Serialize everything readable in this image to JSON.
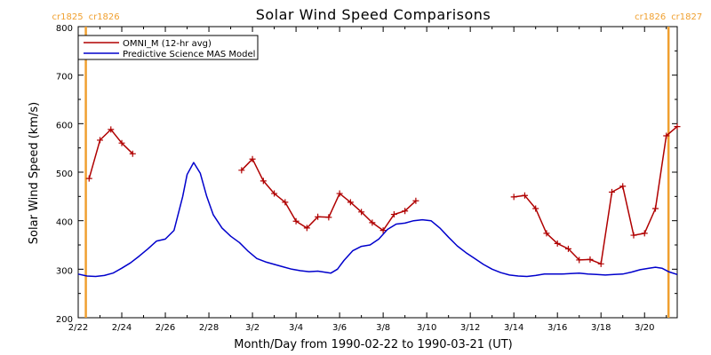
{
  "chart_data": {
    "type": "line",
    "title": "Solar Wind Speed Comparisons",
    "xlabel": "Month/Day from 1990-02-22 to 1990-03-21 (UT)",
    "ylabel": "Solar Wind Speed (km/s)",
    "ylim": [
      200,
      800
    ],
    "xlim_days": [
      0,
      27.5
    ],
    "y_ticks": [
      200,
      300,
      400,
      500,
      600,
      700,
      800
    ],
    "x_ticks": [
      {
        "day": 0,
        "label": "2/22"
      },
      {
        "day": 2,
        "label": "2/24"
      },
      {
        "day": 4,
        "label": "2/26"
      },
      {
        "day": 6,
        "label": "2/28"
      },
      {
        "day": 8,
        "label": "3/2"
      },
      {
        "day": 10,
        "label": "3/4"
      },
      {
        "day": 12,
        "label": "3/6"
      },
      {
        "day": 14,
        "label": "3/8"
      },
      {
        "day": 16,
        "label": "3/10"
      },
      {
        "day": 18,
        "label": "3/12"
      },
      {
        "day": 20,
        "label": "3/14"
      },
      {
        "day": 22,
        "label": "3/16"
      },
      {
        "day": 24,
        "label": "3/18"
      },
      {
        "day": 26,
        "label": "3/20"
      }
    ],
    "carrington_markers": [
      {
        "day": 0.35,
        "left_label": "cr1825",
        "right_label": "cr1826"
      },
      {
        "day": 27.1,
        "left_label": "cr1826",
        "right_label": "cr1827"
      }
    ],
    "legend": {
      "placement": "top-left"
    },
    "series": [
      {
        "name": "OMNI_M (12-hr avg)",
        "color": "#b00000",
        "markers": true,
        "segments": [
          [
            [
              0.5,
              487
            ],
            [
              1.0,
              566
            ],
            [
              1.5,
              588
            ],
            [
              2.0,
              560
            ],
            [
              2.5,
              538
            ]
          ],
          [
            [
              7.5,
              504
            ],
            [
              8.0,
              527
            ],
            [
              8.5,
              482
            ],
            [
              9.0,
              456
            ],
            [
              9.5,
              438
            ],
            [
              10.0,
              399
            ],
            [
              10.5,
              385
            ],
            [
              11.0,
              408
            ],
            [
              11.5,
              407
            ],
            [
              12.0,
              456
            ],
            [
              12.5,
              438
            ],
            [
              13.0,
              418
            ],
            [
              13.5,
              396
            ],
            [
              14.0,
              380
            ],
            [
              14.5,
              413
            ],
            [
              15.0,
              420
            ],
            [
              15.5,
              441
            ]
          ],
          [
            [
              20.0,
              449
            ],
            [
              20.5,
              452
            ],
            [
              21.0,
              425
            ],
            [
              21.5,
              374
            ],
            [
              22.0,
              353
            ],
            [
              22.5,
              342
            ],
            [
              23.0,
              319
            ],
            [
              23.5,
              320
            ],
            [
              24.0,
              311
            ],
            [
              24.5,
              459
            ],
            [
              25.0,
              471
            ],
            [
              25.5,
              370
            ],
            [
              26.0,
              374
            ],
            [
              26.5,
              425
            ],
            [
              27.0,
              575
            ],
            [
              27.5,
              594
            ]
          ]
        ]
      },
      {
        "name": "Predictive Science MAS Model",
        "color": "#0000cc",
        "markers": false,
        "segments": [
          [
            [
              0.0,
              290
            ],
            [
              0.4,
              286
            ],
            [
              0.8,
              285
            ],
            [
              1.2,
              287
            ],
            [
              1.6,
              292
            ],
            [
              2.0,
              302
            ],
            [
              2.4,
              313
            ],
            [
              2.8,
              327
            ],
            [
              3.2,
              342
            ],
            [
              3.6,
              358
            ],
            [
              4.0,
              362
            ],
            [
              4.4,
              380
            ],
            [
              4.8,
              450
            ],
            [
              5.0,
              495
            ],
            [
              5.3,
              520
            ],
            [
              5.6,
              498
            ],
            [
              5.9,
              450
            ],
            [
              6.2,
              412
            ],
            [
              6.6,
              385
            ],
            [
              7.0,
              368
            ],
            [
              7.4,
              355
            ],
            [
              7.8,
              337
            ],
            [
              8.2,
              322
            ],
            [
              8.6,
              315
            ],
            [
              9.0,
              310
            ],
            [
              9.4,
              305
            ],
            [
              9.8,
              300
            ],
            [
              10.2,
              297
            ],
            [
              10.6,
              295
            ],
            [
              11.0,
              296
            ],
            [
              11.3,
              294
            ],
            [
              11.6,
              292
            ],
            [
              11.9,
              300
            ],
            [
              12.2,
              318
            ],
            [
              12.6,
              338
            ],
            [
              13.0,
              347
            ],
            [
              13.4,
              350
            ],
            [
              13.8,
              362
            ],
            [
              14.2,
              382
            ],
            [
              14.6,
              393
            ],
            [
              15.0,
              395
            ],
            [
              15.4,
              400
            ],
            [
              15.8,
              402
            ],
            [
              16.2,
              400
            ],
            [
              16.6,
              385
            ],
            [
              17.0,
              366
            ],
            [
              17.4,
              348
            ],
            [
              17.8,
              334
            ],
            [
              18.2,
              322
            ],
            [
              18.6,
              310
            ],
            [
              19.0,
              300
            ],
            [
              19.4,
              293
            ],
            [
              19.8,
              288
            ],
            [
              20.2,
              286
            ],
            [
              20.6,
              285
            ],
            [
              21.0,
              287
            ],
            [
              21.4,
              290
            ],
            [
              21.8,
              290
            ],
            [
              22.2,
              290
            ],
            [
              22.6,
              291
            ],
            [
              23.0,
              292
            ],
            [
              23.4,
              290
            ],
            [
              23.8,
              289
            ],
            [
              24.2,
              288
            ],
            [
              24.6,
              289
            ],
            [
              25.0,
              290
            ],
            [
              25.4,
              294
            ],
            [
              25.8,
              299
            ],
            [
              26.2,
              302
            ],
            [
              26.5,
              304
            ],
            [
              26.8,
              302
            ],
            [
              27.1,
              295
            ],
            [
              27.5,
              289
            ]
          ]
        ]
      }
    ],
    "colors": {
      "omni": "#b00000",
      "mas": "#0000cc",
      "carrington": "#f0a030"
    }
  }
}
